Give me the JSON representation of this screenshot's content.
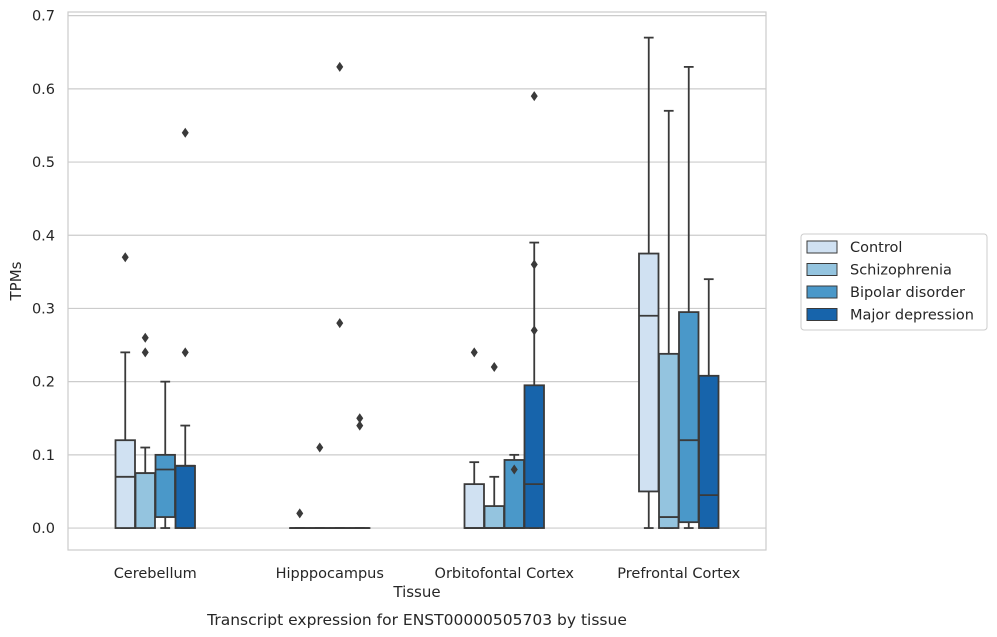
{
  "chart_data": {
    "type": "boxplot",
    "title": "Transcript expression for ENST00000505703 by tissue",
    "xlabel": "Tissue",
    "ylabel": "TPMs",
    "ylim": [
      -0.03,
      0.705
    ],
    "yticks": [
      "0.0",
      "0.1",
      "0.2",
      "0.3",
      "0.4",
      "0.5",
      "0.6",
      "0.7"
    ],
    "grid": "horizontal",
    "legend_position": "right",
    "categories": [
      "Cerebellum",
      "Hipppocampus",
      "Orbitofontal Cortex",
      "Prefrontal Cortex"
    ],
    "series": [
      {
        "name": "Control",
        "color": "#d0e1f2",
        "boxes": [
          {
            "q1": 0.0,
            "median": 0.07,
            "q3": 0.12,
            "whisker_low": 0.0,
            "whisker_high": 0.24,
            "outliers": [
              0.37
            ]
          },
          {
            "q1": 0.0,
            "median": 0.0,
            "q3": 0.0,
            "whisker_low": 0.0,
            "whisker_high": 0.0,
            "outliers": [
              0.02
            ]
          },
          {
            "q1": 0.0,
            "median": 0.0,
            "q3": 0.06,
            "whisker_low": 0.0,
            "whisker_high": 0.09,
            "outliers": [
              0.24
            ]
          },
          {
            "q1": 0.05,
            "median": 0.29,
            "q3": 0.375,
            "whisker_low": 0.0,
            "whisker_high": 0.67,
            "outliers": []
          }
        ]
      },
      {
        "name": "Schizophrenia",
        "color": "#94c4df",
        "boxes": [
          {
            "q1": 0.0,
            "median": 0.075,
            "q3": 0.075,
            "whisker_low": 0.0,
            "whisker_high": 0.11,
            "outliers": [
              0.24,
              0.26
            ]
          },
          {
            "q1": 0.0,
            "median": 0.0,
            "q3": 0.0,
            "whisker_low": 0.0,
            "whisker_high": 0.0,
            "outliers": [
              0.11
            ]
          },
          {
            "q1": 0.0,
            "median": 0.0,
            "q3": 0.03,
            "whisker_low": 0.0,
            "whisker_high": 0.07,
            "outliers": [
              0.22
            ]
          },
          {
            "q1": 0.0,
            "median": 0.015,
            "q3": 0.238,
            "whisker_low": 0.0,
            "whisker_high": 0.57,
            "outliers": []
          }
        ]
      },
      {
        "name": "Bipolar disorder",
        "color": "#4a98c9",
        "boxes": [
          {
            "q1": 0.015,
            "median": 0.08,
            "q3": 0.1,
            "whisker_low": 0.0,
            "whisker_high": 0.2,
            "outliers": []
          },
          {
            "q1": 0.0,
            "median": 0.0,
            "q3": 0.0,
            "whisker_low": 0.0,
            "whisker_high": 0.0,
            "outliers": [
              0.28,
              0.63
            ]
          },
          {
            "q1": 0.0,
            "median": 0.0,
            "q3": 0.093,
            "whisker_low": 0.0,
            "whisker_high": 0.1,
            "outliers": [
              0.08
            ]
          },
          {
            "q1": 0.008,
            "median": 0.12,
            "q3": 0.295,
            "whisker_low": 0.0,
            "whisker_high": 0.63,
            "outliers": []
          }
        ]
      },
      {
        "name": "Major depression",
        "color": "#1764ab",
        "boxes": [
          {
            "q1": 0.0,
            "median": 0.085,
            "q3": 0.085,
            "whisker_low": 0.0,
            "whisker_high": 0.14,
            "outliers": [
              0.24,
              0.54
            ]
          },
          {
            "q1": 0.0,
            "median": 0.0,
            "q3": 0.0,
            "whisker_low": 0.0,
            "whisker_high": 0.0,
            "outliers": [
              0.14,
              0.15
            ]
          },
          {
            "q1": 0.0,
            "median": 0.06,
            "q3": 0.195,
            "whisker_low": 0.0,
            "whisker_high": 0.39,
            "outliers": [
              0.27,
              0.36,
              0.59
            ]
          },
          {
            "q1": 0.0,
            "median": 0.045,
            "q3": 0.208,
            "whisker_low": 0.0,
            "whisker_high": 0.34,
            "outliers": []
          }
        ]
      }
    ]
  }
}
